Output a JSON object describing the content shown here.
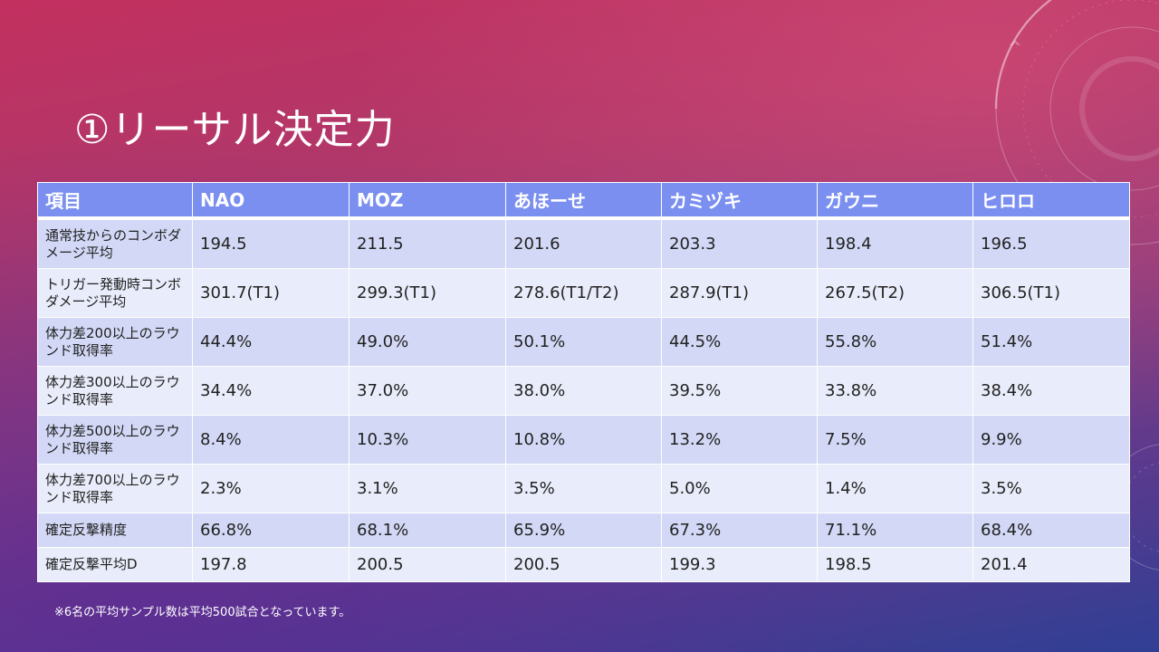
{
  "title": "①リーサル決定力",
  "note": "※6名の平均サンプル数は平均500試合となっています。",
  "table": {
    "headers": [
      "項目",
      "NAO",
      "MOZ",
      "あほーせ",
      "カミヅキ",
      "ガウニ",
      "ヒロロ"
    ],
    "rows": [
      {
        "label": "通常技からのコンボダメージ平均",
        "values": [
          "194.5",
          "211.5",
          "201.6",
          "203.3",
          "198.4",
          "196.5"
        ]
      },
      {
        "label": "トリガー発動時コンボダメージ平均",
        "values": [
          "301.7(T1)",
          "299.3(T1)",
          "278.6(T1/T2)",
          "287.9(T1)",
          "267.5(T2)",
          "306.5(T1)"
        ]
      },
      {
        "label": "体力差200以上のラウンド取得率",
        "values": [
          "44.4%",
          "49.0%",
          "50.1%",
          "44.5%",
          "55.8%",
          "51.4%"
        ]
      },
      {
        "label": "体力差300以上のラウンド取得率",
        "values": [
          "34.4%",
          "37.0%",
          "38.0%",
          "39.5%",
          "33.8%",
          "38.4%"
        ]
      },
      {
        "label": "体力差500以上のラウンド取得率",
        "values": [
          "8.4%",
          "10.3%",
          "10.8%",
          "13.2%",
          "7.5%",
          "9.9%"
        ]
      },
      {
        "label": "体力差700以上のラウンド取得率",
        "values": [
          "2.3%",
          "3.1%",
          "3.5%",
          "5.0%",
          "1.4%",
          "3.5%"
        ]
      },
      {
        "label": "確定反撃精度",
        "values": [
          "66.8%",
          "68.1%",
          "65.9%",
          "67.3%",
          "71.1%",
          "68.4%"
        ]
      },
      {
        "label": "確定反撃平均D",
        "values": [
          "197.8",
          "200.5",
          "200.5",
          "199.3",
          "198.5",
          "201.4"
        ]
      }
    ]
  },
  "colors": {
    "header_bg": "#7b8ff0",
    "row_odd_bg": "#d2d8f5",
    "row_even_bg": "#e9ecfa"
  }
}
